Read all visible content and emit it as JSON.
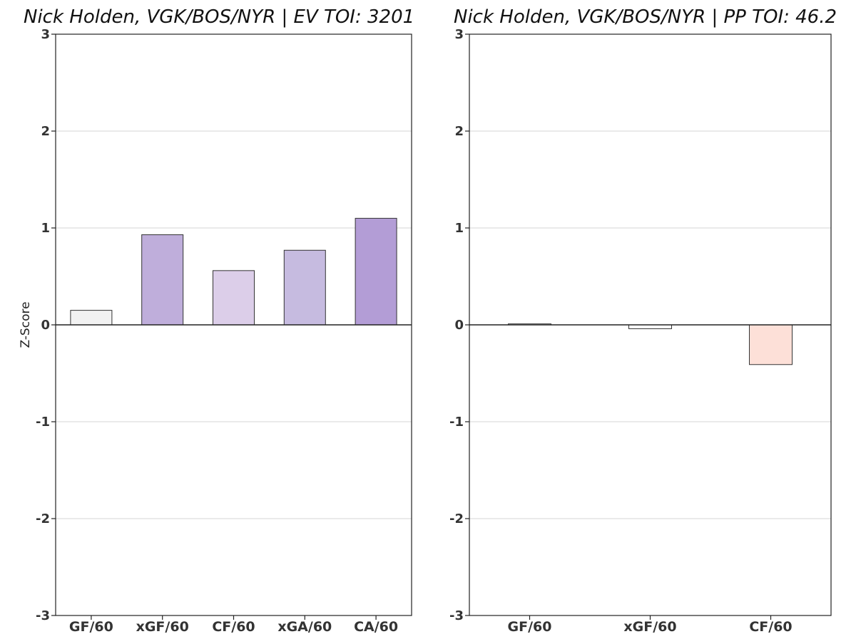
{
  "chart_data": [
    {
      "type": "bar",
      "title": "Nick Holden, VGK/BOS/NYR  |  EV TOI: 3201",
      "ylabel": "Z-Score",
      "xlabel": "",
      "ylim": [
        -3,
        3
      ],
      "yticks": [
        "3",
        "2",
        "1",
        "0",
        "-1",
        "-2",
        "-3"
      ],
      "grid": "horizontal",
      "categories": [
        "GF/60",
        "xGF/60",
        "CF/60",
        "xGA/60",
        "CA/60"
      ],
      "values": [
        0.15,
        0.93,
        0.56,
        0.77,
        1.1
      ],
      "colors": [
        "#f2f2f2",
        "#bfaedb",
        "#dccee9",
        "#c6bbe0",
        "#b39dd6"
      ]
    },
    {
      "type": "bar",
      "title": "Nick Holden, VGK/BOS/NYR  |  PP TOI: 46.2",
      "ylabel": "",
      "xlabel": "",
      "ylim": [
        -3,
        3
      ],
      "yticks": [
        "3",
        "2",
        "1",
        "0",
        "-1",
        "-2",
        "-3"
      ],
      "grid": "horizontal",
      "categories": [
        "GF/60",
        "xGF/60",
        "CF/60"
      ],
      "values": [
        0.01,
        -0.04,
        -0.41
      ],
      "colors": [
        "#ffffff",
        "#ffffff",
        "#fde0d8"
      ]
    }
  ]
}
